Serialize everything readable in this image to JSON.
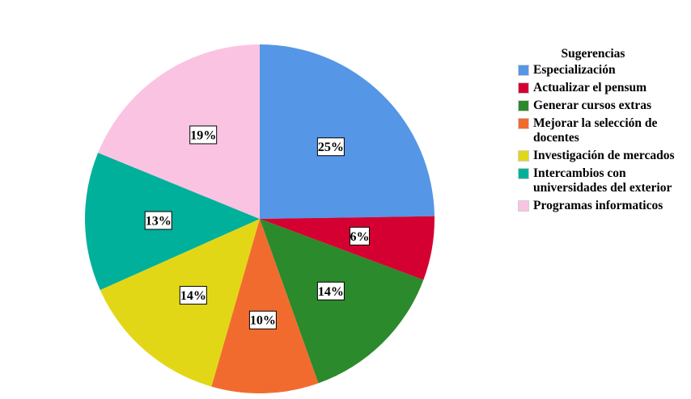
{
  "chart_data": {
    "type": "pie",
    "legend_title": "Sugerencias",
    "legend_position": "right",
    "slices": [
      {
        "label": "Especialización",
        "value": 25,
        "display": "25%",
        "color": "#5596e6"
      },
      {
        "label": "Actualizar el pensum",
        "value": 6,
        "display": "6%",
        "color": "#d50032"
      },
      {
        "label": "Generar cursos extras",
        "value": 14,
        "display": "14%",
        "color": "#2b8a2b"
      },
      {
        "label": "Mejorar la selección de docentes",
        "value": 10,
        "display": "10%",
        "color": "#f26b2e"
      },
      {
        "label": "Investigación de mercados",
        "value": 14,
        "display": "14%",
        "color": "#e2d716"
      },
      {
        "label": "Intercambios con universidades del exterior",
        "value": 13,
        "display": "13%",
        "color": "#00b09b"
      },
      {
        "label": "Programas informaticos",
        "value": 19,
        "display": "19%",
        "color": "#fbc3e2"
      }
    ]
  }
}
